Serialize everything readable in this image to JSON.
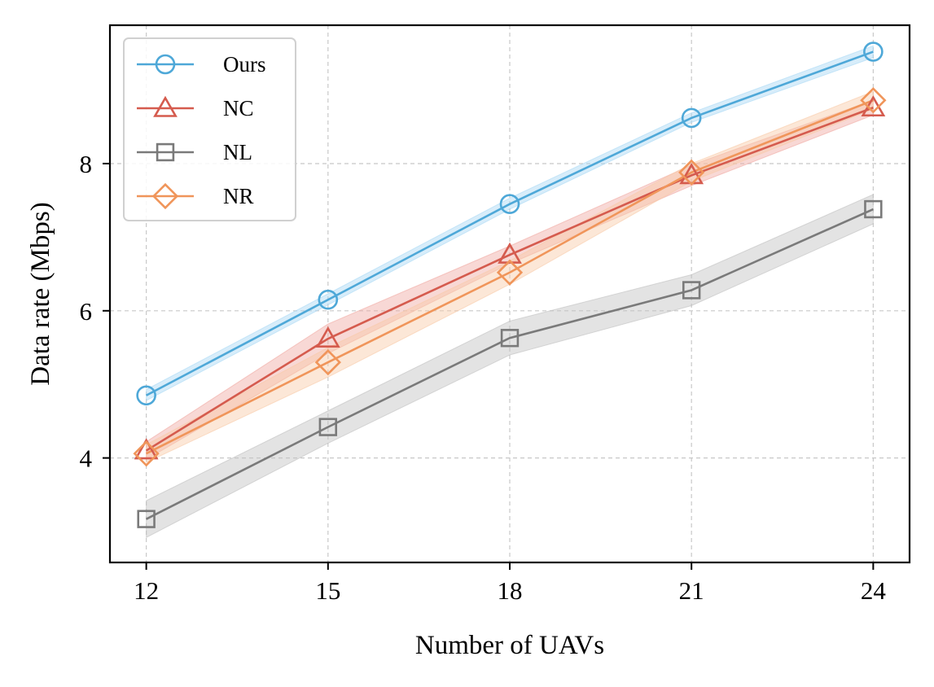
{
  "chart_data": {
    "type": "line",
    "title": "",
    "xlabel": "Number of UAVs",
    "ylabel": "Data rate (Mbps)",
    "x": [
      12,
      15,
      18,
      21,
      24
    ],
    "x_ticks": [
      "12",
      "15",
      "18",
      "21",
      "24"
    ],
    "y_ticks": [
      "4",
      "6",
      "8"
    ],
    "xlim": [
      11.4,
      24.6
    ],
    "ylim": [
      2.58,
      9.88
    ],
    "grid": true,
    "legend_position": "top-left",
    "series": [
      {
        "name": "Ours",
        "color": "#4ea8d8",
        "band_color": "#a9d8f5",
        "marker": "circle",
        "values": [
          4.85,
          6.15,
          7.45,
          8.62,
          9.52
        ],
        "lower": [
          4.78,
          6.08,
          7.38,
          8.56,
          9.44
        ],
        "upper": [
          4.93,
          6.23,
          7.53,
          8.69,
          9.6
        ]
      },
      {
        "name": "NC",
        "color": "#d55b4e",
        "band_color": "#f0a8a2",
        "marker": "triangle",
        "values": [
          4.1,
          5.62,
          6.76,
          7.84,
          8.76
        ],
        "lower": [
          3.98,
          5.42,
          6.64,
          7.7,
          8.66
        ],
        "upper": [
          4.22,
          5.82,
          6.88,
          7.98,
          8.86
        ]
      },
      {
        "name": "NL",
        "color": "#7a7a7a",
        "band_color": "#c0c0c0",
        "marker": "square",
        "values": [
          3.17,
          4.42,
          5.63,
          6.28,
          7.38
        ],
        "lower": [
          2.92,
          4.2,
          5.4,
          6.07,
          7.18
        ],
        "upper": [
          3.42,
          4.64,
          5.86,
          6.49,
          7.58
        ]
      },
      {
        "name": "NR",
        "color": "#f0955a",
        "band_color": "#f8c9a6",
        "marker": "diamond",
        "values": [
          4.06,
          5.3,
          6.52,
          7.88,
          8.86
        ],
        "lower": [
          3.94,
          5.1,
          6.36,
          7.76,
          8.74
        ],
        "upper": [
          4.18,
          5.5,
          6.68,
          8.0,
          8.98
        ]
      }
    ]
  }
}
